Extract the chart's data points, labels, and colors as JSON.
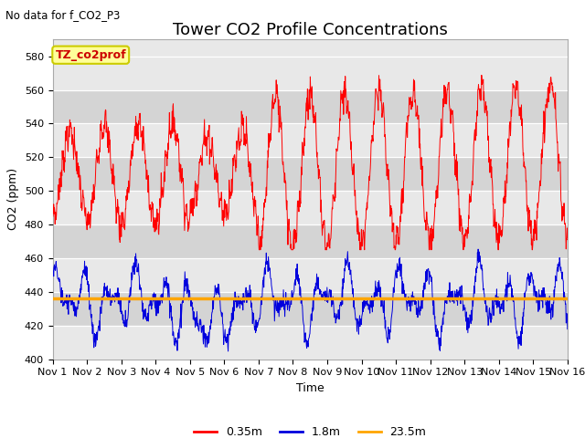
{
  "title": "Tower CO2 Profile Concentrations",
  "top_left_text": "No data for f_CO2_P3",
  "ylabel": "CO2 (ppm)",
  "xlabel": "Time",
  "legend_label_box": "TZ_co2prof",
  "legend_entries": [
    "0.35m",
    "1.8m",
    "23.5m"
  ],
  "legend_colors": [
    "#ff0000",
    "#0000dd",
    "#ffa500"
  ],
  "ylim": [
    400,
    590
  ],
  "yticks": [
    400,
    420,
    440,
    460,
    480,
    500,
    520,
    540,
    560,
    580
  ],
  "xtick_labels": [
    "Nov 1",
    "Nov 2",
    "Nov 3",
    "Nov 4",
    "Nov 5",
    "Nov 6",
    "Nov 7",
    "Nov 8",
    "Nov 9",
    "Nov 10",
    "Nov 11",
    "Nov 12",
    "Nov 13",
    "Nov 14",
    "Nov 15",
    "Nov 16"
  ],
  "num_days": 15,
  "orange_value": 436,
  "background_color": "#ffffff",
  "plot_bg_color": "#e8e8e8",
  "stripe_color": "#d4d4d4",
  "box_color": "#ffff99",
  "box_edge_color": "#cccc00",
  "title_fontsize": 13,
  "axis_label_fontsize": 9,
  "tick_fontsize": 8,
  "legend_fontsize": 9
}
